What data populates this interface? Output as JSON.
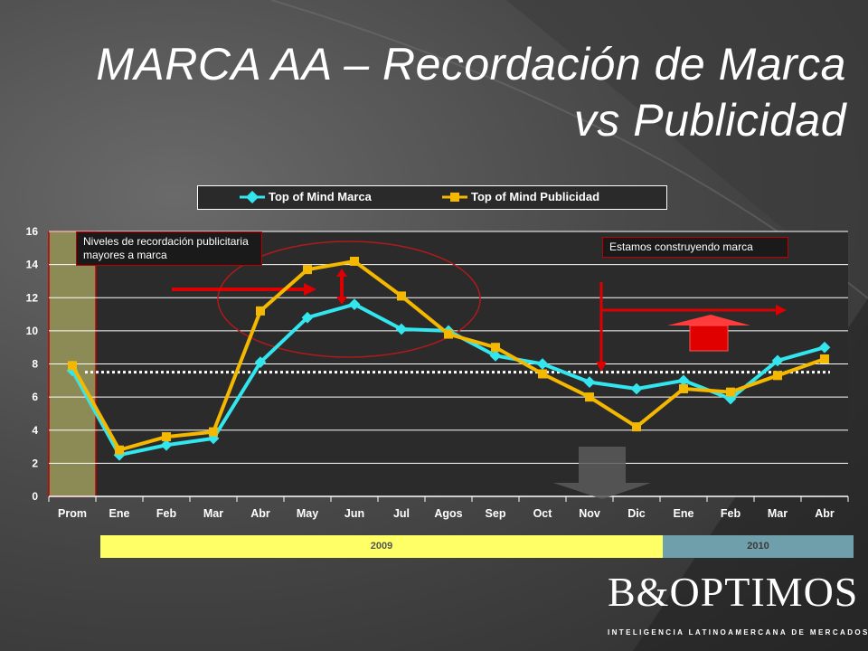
{
  "title": {
    "line1": "MARCA AA – Recordación de Marca",
    "line2": "vs Publicidad"
  },
  "colors": {
    "marca": "#33e6ee",
    "publicidad": "#f5b800",
    "year2009": "#ffff66",
    "year2010": "#6f9fab",
    "arrow": "#dd0000"
  },
  "legend": {
    "series1": "Top of Mind Marca",
    "series2": "Top of Mind Publicidad"
  },
  "notes": {
    "left": "Niveles de recordación publicitaria mayores a marca",
    "right": "Estamos construyendo marca"
  },
  "years": {
    "y2009": "2009",
    "y2010": "2010"
  },
  "logo": {
    "name": "B&OPTIMOS",
    "tagline": "INTELIGENCIA LATINOAMERCANA DE MERCADOS"
  },
  "chart_data": {
    "type": "line",
    "categories": [
      "Prom",
      "Ene",
      "Feb",
      "Mar",
      "Abr",
      "May",
      "Jun",
      "Jul",
      "Agos",
      "Sep",
      "Oct",
      "Nov",
      "Dic",
      "Ene",
      "Feb",
      "Mar",
      "Abr"
    ],
    "ylim": [
      0,
      16
    ],
    "yticks": [
      0,
      2,
      4,
      6,
      8,
      10,
      12,
      14,
      16
    ],
    "grid": true,
    "legend_position": "top",
    "reference_line": 7.5,
    "series": [
      {
        "name": "Top of Mind Marca",
        "color": "#33e6ee",
        "values": [
          7.6,
          2.5,
          3.1,
          3.5,
          8.1,
          10.8,
          11.6,
          10.1,
          10.0,
          8.5,
          8.0,
          6.9,
          6.5,
          7.0,
          5.9,
          8.2,
          9.0
        ]
      },
      {
        "name": "Top of Mind Publicidad",
        "color": "#f5b800",
        "values": [
          7.9,
          2.8,
          3.6,
          3.9,
          11.2,
          13.7,
          14.2,
          12.1,
          9.8,
          9.0,
          7.4,
          6.0,
          4.2,
          6.5,
          6.3,
          7.3,
          8.3
        ]
      }
    ]
  }
}
